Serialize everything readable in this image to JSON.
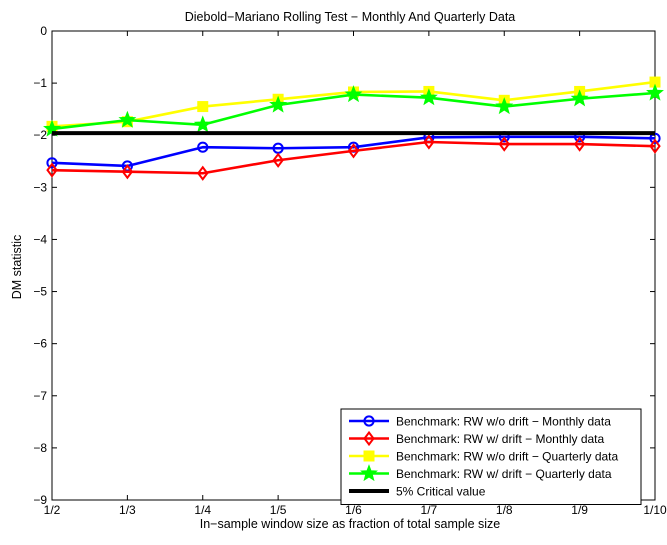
{
  "chart_data": {
    "type": "line",
    "title": "Diebold−Mariano Rolling Test − Monthly And Quarterly Data",
    "xlabel": "In−sample window size as fraction of total sample size",
    "ylabel": "DM statistic",
    "categories": [
      "1/2",
      "1/3",
      "1/4",
      "1/5",
      "1/6",
      "1/7",
      "1/8",
      "1/9",
      "1/10"
    ],
    "ylim": [
      -9,
      0
    ],
    "yticks": [
      0,
      -1,
      -2,
      -3,
      -4,
      -5,
      -6,
      -7,
      -8,
      -9
    ],
    "ytick_labels": [
      "0",
      "−1",
      "−2",
      "−3",
      "−4",
      "−5",
      "−6",
      "−7",
      "−8",
      "−9"
    ],
    "grid": false,
    "legend_position": "bottom-right",
    "series": [
      {
        "name": "Benchmark: RW w/o drift − Monthly data",
        "color": "#0000ff",
        "marker": "circle",
        "values": [
          -2.53,
          -2.59,
          -2.23,
          -2.25,
          -2.23,
          -2.04,
          -2.03,
          -2.03,
          -2.06
        ]
      },
      {
        "name": "Benchmark: RW w/ drift − Monthly data",
        "color": "#ff0000",
        "marker": "diamond",
        "values": [
          -2.67,
          -2.7,
          -2.73,
          -2.48,
          -2.3,
          -2.13,
          -2.17,
          -2.17,
          -2.21
        ]
      },
      {
        "name": "Benchmark: RW w/o drift − Quarterly data",
        "color": "#ffff00",
        "marker": "square",
        "values": [
          -1.83,
          -1.74,
          -1.45,
          -1.31,
          -1.17,
          -1.16,
          -1.33,
          -1.16,
          -0.98
        ]
      },
      {
        "name": "Benchmark: RW w/ drift − Quarterly data",
        "color": "#00ff00",
        "marker": "star",
        "values": [
          -1.88,
          -1.71,
          -1.8,
          -1.42,
          -1.22,
          -1.28,
          -1.45,
          -1.3,
          -1.19
        ]
      },
      {
        "name": "5% Critical value",
        "color": "#000000",
        "marker": "none",
        "values": [
          -1.96,
          -1.96,
          -1.96,
          -1.96,
          -1.96,
          -1.96,
          -1.96,
          -1.96,
          -1.96
        ]
      }
    ]
  }
}
